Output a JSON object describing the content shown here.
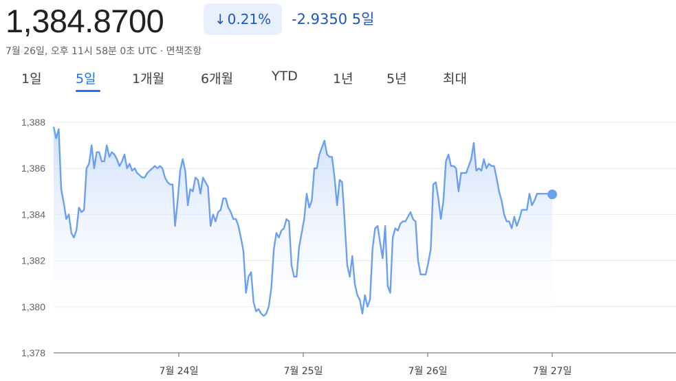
{
  "header": {
    "price": "1,384.8700",
    "change_pct": "0.21%",
    "change_arrow": "↓",
    "change_abs": "-2.9350",
    "change_period": "5일",
    "timestamp": "7월 26일, 오후 11시 58분 0초 UTC · 면책조항"
  },
  "tabs": [
    {
      "label": "1일",
      "active": false
    },
    {
      "label": "5일",
      "active": true
    },
    {
      "label": "1개월",
      "active": false
    },
    {
      "label": "6개월",
      "active": false
    },
    {
      "label": "YTD",
      "active": false
    },
    {
      "label": "1년",
      "active": false
    },
    {
      "label": "5년",
      "active": false
    },
    {
      "label": "최대",
      "active": false
    }
  ],
  "colors": {
    "line": "#6ba0f0",
    "fill_top": "#c5d9fb",
    "accent": "#1a73e8"
  },
  "chart_data": {
    "type": "area",
    "ylim": [
      1378,
      1388
    ],
    "yticks": [
      "1,378",
      "1,380",
      "1,382",
      "1,384",
      "1,386",
      "1,388"
    ],
    "xticks": [
      "7월 24일",
      "7월 25일",
      "7월 26일",
      "7월 27일"
    ],
    "grid": true,
    "series": [
      {
        "values": [
          1387.8,
          1387.3,
          1387.7,
          1385.1,
          1384.5,
          1383.8,
          1384.0,
          1383.2,
          1383.0,
          1383.3,
          1384.3,
          1384.1,
          1384.2,
          1386.0,
          1386.2,
          1387.0,
          1386.0,
          1386.7,
          1386.7,
          1386.3,
          1386.3,
          1387.0,
          1386.5,
          1386.7,
          1386.6,
          1386.4,
          1386.1,
          1386.3,
          1386.6,
          1386.0,
          1386.2,
          1385.9,
          1386.0,
          1385.8,
          1385.7,
          1385.6,
          1385.6,
          1385.8,
          1385.9,
          1386.0,
          1386.1,
          1386.0,
          1386.1,
          1386.0,
          1385.6,
          1385.4,
          1385.3,
          1385.3,
          1383.5,
          1384.6,
          1385.9,
          1386.4,
          1385.9,
          1384.4,
          1385.1,
          1385.0,
          1385.6,
          1385.5,
          1384.9,
          1385.6,
          1385.4,
          1385.2,
          1383.5,
          1384.0,
          1383.7,
          1384.1,
          1384.2,
          1384.7,
          1384.7,
          1384.3,
          1384.1,
          1383.8,
          1383.8,
          1383.5,
          1383.0,
          1382.4,
          1380.6,
          1381.3,
          1381.5,
          1380.2,
          1379.8,
          1379.9,
          1379.7,
          1379.6,
          1379.7,
          1380.0,
          1380.8,
          1382.5,
          1383.2,
          1383.0,
          1383.3,
          1383.4,
          1383.8,
          1383.7,
          1381.8,
          1381.3,
          1381.3,
          1382.6,
          1383.2,
          1383.8,
          1384.9,
          1384.3,
          1384.6,
          1386.0,
          1386.0,
          1386.6,
          1386.9,
          1387.2,
          1386.6,
          1386.5,
          1386.5,
          1385.6,
          1384.4,
          1385.5,
          1385.4,
          1383.7,
          1381.8,
          1381.3,
          1382.2,
          1381.0,
          1380.5,
          1380.3,
          1379.7,
          1380.5,
          1380.0,
          1380.3,
          1382.5,
          1383.4,
          1383.5,
          1382.8,
          1382.1,
          1383.5,
          1380.9,
          1380.6,
          1383.0,
          1383.4,
          1383.3,
          1383.6,
          1383.7,
          1383.7,
          1383.9,
          1384.1,
          1383.8,
          1383.7,
          1382.0,
          1381.4,
          1381.4,
          1381.4,
          1381.9,
          1382.5,
          1385.3,
          1385.4,
          1384.7,
          1383.8,
          1384.6,
          1386.3,
          1386.6,
          1386.1,
          1386.1,
          1386.0,
          1385.0,
          1385.8,
          1385.8,
          1385.8,
          1386.1,
          1386.4,
          1387.1,
          1385.9,
          1386.0,
          1385.9,
          1386.4,
          1386.0,
          1386.2,
          1386.1,
          1386.1,
          1385.6,
          1385.0,
          1384.6,
          1384.0,
          1383.7,
          1383.7,
          1383.4,
          1383.9,
          1383.5,
          1383.8,
          1384.2,
          1384.2,
          1384.2,
          1384.9,
          1384.4,
          1384.6,
          1384.9,
          1384.9,
          1384.9,
          1384.9,
          1384.9,
          1384.9,
          1384.87
        ]
      }
    ]
  }
}
